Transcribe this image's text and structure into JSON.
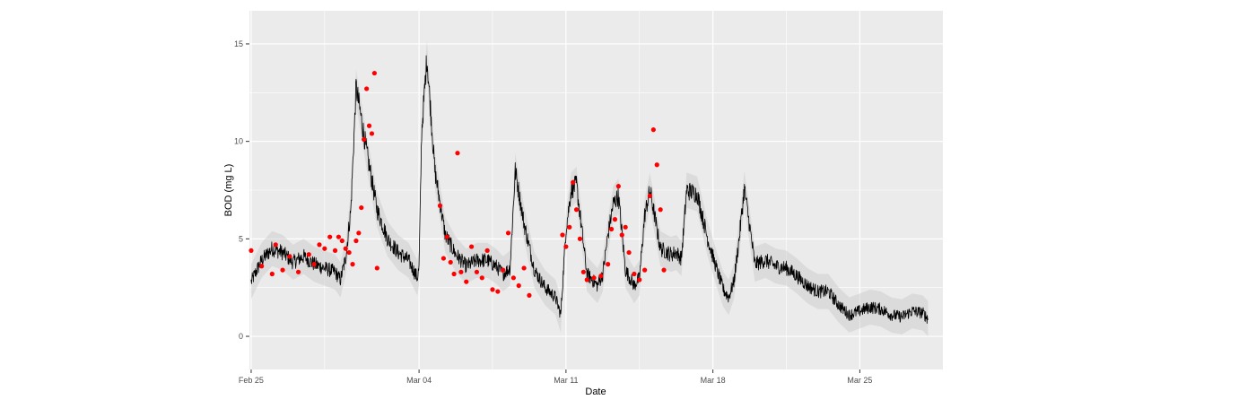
{
  "chart_data": {
    "type": "line",
    "title": "",
    "xlabel": "Date",
    "ylabel": "BOD (mg L)",
    "xlim": [
      "2024-02-24T22:00",
      "2024-03-28T23:00"
    ],
    "ylim": [
      -1.7,
      16.7
    ],
    "x_ticks": [
      {
        "date": "2024-02-25",
        "label": "Feb 25"
      },
      {
        "date": "2024-03-04",
        "label": "Mar 04"
      },
      {
        "date": "2024-03-11",
        "label": "Mar 11"
      },
      {
        "date": "2024-03-18",
        "label": "Mar 18"
      },
      {
        "date": "2024-03-25",
        "label": "Mar 25"
      }
    ],
    "x_minor_ticks": [
      "2024-02-28T12:00",
      "2024-03-07T12:00",
      "2024-03-14T12:00",
      "2024-03-21T12:00"
    ],
    "y_ticks": [
      0,
      5,
      10,
      15
    ],
    "y_minor_ticks": [
      2.5,
      7.5,
      12.5
    ],
    "grid": true,
    "legend": "none",
    "colors": {
      "line": "#000000",
      "points": "#ff0000",
      "ribbon": "#c8c8c8",
      "panel": "#ebebeb",
      "grid": "#ffffff"
    },
    "series": [
      {
        "kind": "line",
        "x": [
          "2024-02-25T00:00",
          "2024-02-25T12:00",
          "2024-02-26T00:00",
          "2024-02-26T12:00",
          "2024-02-27T00:00",
          "2024-02-27T12:00",
          "2024-02-28T00:00",
          "2024-02-28T12:00",
          "2024-02-29T00:00",
          "2024-02-29T06:00",
          "2024-02-29T12:00",
          "2024-02-29T18:00",
          "2024-03-01T00:00",
          "2024-03-01T12:00",
          "2024-03-02T00:00",
          "2024-03-02T12:00",
          "2024-03-03T00:00",
          "2024-03-03T12:00",
          "2024-03-03T22:00",
          "2024-03-04T00:00",
          "2024-03-04T03:00",
          "2024-03-04T09:00",
          "2024-03-04T18:00",
          "2024-03-05T06:00",
          "2024-03-05T18:00",
          "2024-03-06T06:00",
          "2024-03-06T18:00",
          "2024-03-07T06:00",
          "2024-03-07T16:00",
          "2024-03-08T00:00",
          "2024-03-08T08:00",
          "2024-03-08T14:00",
          "2024-03-09T00:00",
          "2024-03-09T12:00",
          "2024-03-10T00:00",
          "2024-03-10T12:00",
          "2024-03-10T18:00",
          "2024-03-11T00:00",
          "2024-03-11T06:00",
          "2024-03-11T12:00",
          "2024-03-12T00:00",
          "2024-03-12T12:00",
          "2024-03-12T18:00",
          "2024-03-13T00:00",
          "2024-03-13T06:00",
          "2024-03-13T12:00",
          "2024-03-13T20:00",
          "2024-03-14T06:00",
          "2024-03-14T12:00",
          "2024-03-14T18:00",
          "2024-03-15T00:00",
          "2024-03-15T12:00",
          "2024-03-16T00:00",
          "2024-03-16T06:00",
          "2024-03-16T12:00",
          "2024-03-16T18:00",
          "2024-03-17T06:00",
          "2024-03-17T18:00",
          "2024-03-18T06:00",
          "2024-03-18T12:00",
          "2024-03-18T18:00",
          "2024-03-19T00:00",
          "2024-03-19T06:00",
          "2024-03-19T12:00",
          "2024-03-20T00:00",
          "2024-03-20T12:00",
          "2024-03-21T00:00",
          "2024-03-21T12:00",
          "2024-03-22T00:00",
          "2024-03-22T12:00",
          "2024-03-23T00:00",
          "2024-03-23T12:00",
          "2024-03-24T00:00",
          "2024-03-24T12:00",
          "2024-03-25T00:00",
          "2024-03-25T12:00",
          "2024-03-26T00:00",
          "2024-03-26T12:00",
          "2024-03-27T00:00",
          "2024-03-27T12:00",
          "2024-03-28T00:00",
          "2024-03-28T06:00"
        ],
        "y": [
          2.8,
          3.9,
          4.5,
          4.3,
          3.8,
          4.1,
          3.7,
          3.5,
          3.3,
          2.9,
          4.0,
          6.5,
          12.8,
          9.5,
          6.5,
          5.0,
          4.3,
          3.9,
          3.0,
          3.5,
          10.5,
          14.3,
          8.5,
          5.2,
          4.2,
          3.6,
          3.9,
          3.9,
          3.6,
          3.2,
          3.5,
          8.5,
          5.8,
          3.4,
          2.5,
          2.0,
          1.1,
          5.5,
          7.5,
          7.8,
          3.2,
          2.6,
          3.2,
          5.2,
          6.8,
          7.2,
          3.4,
          2.6,
          3.0,
          6.2,
          7.5,
          4.5,
          4.2,
          4.3,
          4.0,
          7.5,
          7.3,
          5.0,
          3.2,
          2.4,
          2.0,
          2.8,
          5.0,
          7.6,
          3.7,
          3.9,
          3.6,
          3.5,
          3.1,
          2.6,
          2.3,
          2.3,
          1.6,
          1.1,
          1.3,
          1.5,
          1.4,
          1.1,
          1.0,
          1.3,
          1.2,
          0.9
        ]
      },
      {
        "kind": "points",
        "x": [
          "2024-02-25T00:00",
          "2024-02-25T12:00",
          "2024-02-26T00:00",
          "2024-02-26T04:00",
          "2024-02-26T12:00",
          "2024-02-26T20:00",
          "2024-02-27T06:00",
          "2024-02-27T18:00",
          "2024-02-28T00:00",
          "2024-02-28T06:00",
          "2024-02-28T12:00",
          "2024-02-28T18:00",
          "2024-02-29T00:00",
          "2024-02-29T04:00",
          "2024-02-29T08:00",
          "2024-02-29T12:00",
          "2024-02-29T16:00",
          "2024-02-29T20:00",
          "2024-03-01T00:00",
          "2024-03-01T03:00",
          "2024-03-01T06:00",
          "2024-03-01T09:00",
          "2024-03-01T12:00",
          "2024-03-01T15:00",
          "2024-03-01T18:00",
          "2024-03-01T21:00",
          "2024-03-02T00:00",
          "2024-03-05T00:00",
          "2024-03-05T04:00",
          "2024-03-05T08:00",
          "2024-03-05T12:00",
          "2024-03-05T16:00",
          "2024-03-05T20:00",
          "2024-03-06T00:00",
          "2024-03-06T06:00",
          "2024-03-06T12:00",
          "2024-03-06T18:00",
          "2024-03-07T00:00",
          "2024-03-07T06:00",
          "2024-03-07T12:00",
          "2024-03-07T18:00",
          "2024-03-08T00:00",
          "2024-03-08T06:00",
          "2024-03-08T12:00",
          "2024-03-08T18:00",
          "2024-03-09T00:00",
          "2024-03-09T06:00",
          "2024-03-10T20:00",
          "2024-03-11T00:00",
          "2024-03-11T04:00",
          "2024-03-11T08:00",
          "2024-03-11T12:00",
          "2024-03-11T16:00",
          "2024-03-11T20:00",
          "2024-03-12T00:00",
          "2024-03-12T08:00",
          "2024-03-12T16:00",
          "2024-03-13T00:00",
          "2024-03-13T04:00",
          "2024-03-13T08:00",
          "2024-03-13T12:00",
          "2024-03-13T16:00",
          "2024-03-13T20:00",
          "2024-03-14T00:00",
          "2024-03-14T06:00",
          "2024-03-14T12:00",
          "2024-03-14T18:00",
          "2024-03-15T00:00",
          "2024-03-15T04:00",
          "2024-03-15T08:00",
          "2024-03-15T12:00",
          "2024-03-15T16:00"
        ],
        "y": [
          4.4,
          3.6,
          3.2,
          4.7,
          3.4,
          4.1,
          3.3,
          4.2,
          3.7,
          4.7,
          4.5,
          5.1,
          4.4,
          5.1,
          4.9,
          4.5,
          4.3,
          3.7,
          4.9,
          5.3,
          6.6,
          10.1,
          12.7,
          10.8,
          10.4,
          13.5,
          3.5,
          6.7,
          4.0,
          5.1,
          3.8,
          3.2,
          9.4,
          3.3,
          2.8,
          4.6,
          3.3,
          3.0,
          4.4,
          2.4,
          2.3,
          3.4,
          5.3,
          3.0,
          2.6,
          3.5,
          2.1,
          5.2,
          4.6,
          5.6,
          7.9,
          6.5,
          5.0,
          3.3,
          2.9,
          3.0,
          3.1,
          3.7,
          5.5,
          6.0,
          7.7,
          5.2,
          5.6,
          4.3,
          3.2,
          2.9,
          3.4,
          7.2,
          10.6,
          8.8,
          6.5,
          3.4
        ]
      }
    ]
  }
}
